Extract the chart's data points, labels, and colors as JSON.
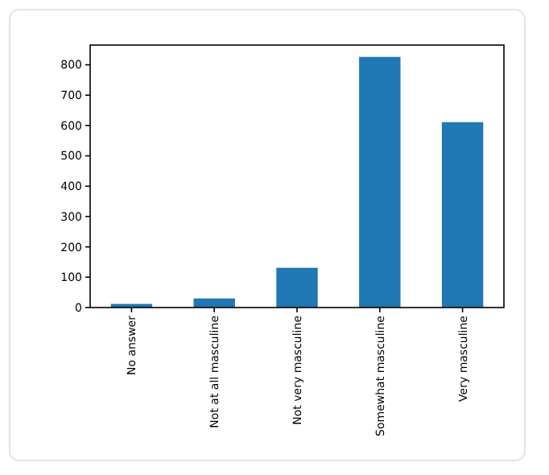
{
  "chart_data": {
    "type": "bar",
    "categories": [
      "No answer",
      "Not at all masculine",
      "Not very masculine",
      "Somewhat masculine",
      "Very masculine"
    ],
    "values": [
      12,
      30,
      131,
      826,
      611
    ],
    "color": "#1f77b4",
    "ylim": [
      0,
      865
    ],
    "yticks": [
      0,
      100,
      200,
      300,
      400,
      500,
      600,
      700,
      800
    ]
  }
}
